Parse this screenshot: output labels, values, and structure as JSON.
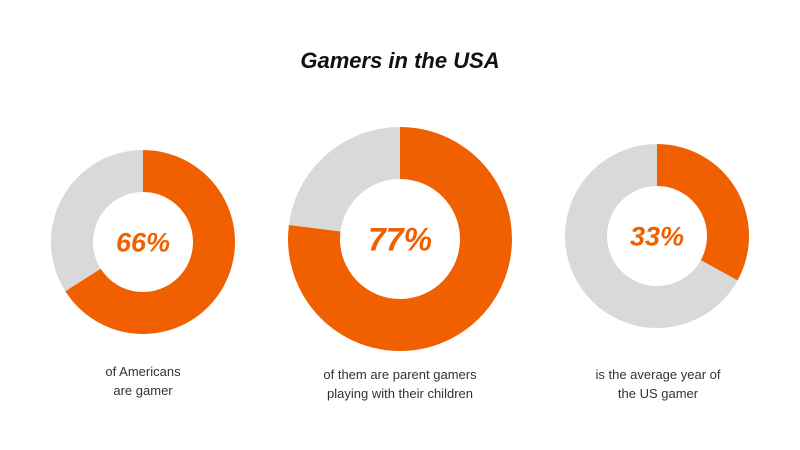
{
  "chart_data": {
    "type": "donut",
    "title": "Gamers in the USA",
    "colors": {
      "value": "#F06000",
      "remainder": "#D9D9D9"
    },
    "charts": [
      {
        "value": 66,
        "label": "66%",
        "caption": [
          "of Americans",
          "are gamer"
        ]
      },
      {
        "value": 77,
        "label": "77%",
        "caption": [
          "of them are parent gamers",
          "playing with their children"
        ]
      },
      {
        "value": 33,
        "label": "33%",
        "caption": [
          "is the average year of",
          "the US gamer"
        ]
      }
    ]
  }
}
